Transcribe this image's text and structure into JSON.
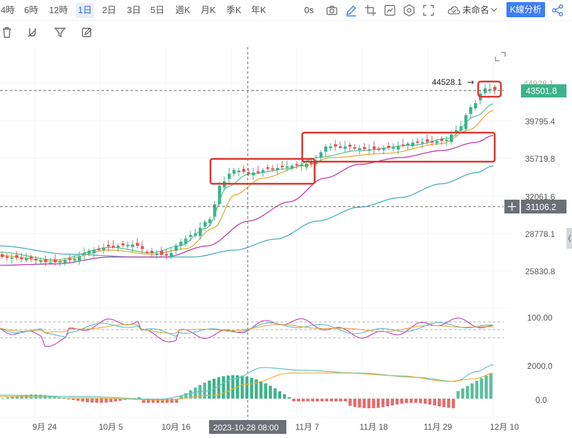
{
  "toolbar": {
    "timeframes": [
      "4時",
      "6時",
      "12時",
      "1日",
      "2日",
      "3日",
      "5日",
      "週K",
      "月K",
      "季K",
      "年K"
    ],
    "active_index": 3,
    "latency": "0s",
    "layout_name": "未命名",
    "analysis_button": "K線分析"
  },
  "chart": {
    "price_axis_labels": [
      "44928.1",
      "39795.4",
      "35719.8",
      "32061.6",
      "28778.1",
      "25830.8"
    ],
    "current_price": "43501.8",
    "crosshair_price": "31106.2",
    "high_marker": "44528.1",
    "date_labels": [
      "9月 24",
      "10月 5",
      "10月 16",
      "11月 7",
      "11月 18",
      "11月 29",
      "12月 10"
    ],
    "crosshair_date": "2023-10-28 08:00",
    "indicator1_label": "100.00",
    "indicator2_labels": [
      "2000.0",
      "0.0"
    ],
    "colors": {
      "up": "#3db389",
      "down": "#e05151",
      "accent": "#3f7ff2",
      "box": "#d9342b"
    }
  }
}
